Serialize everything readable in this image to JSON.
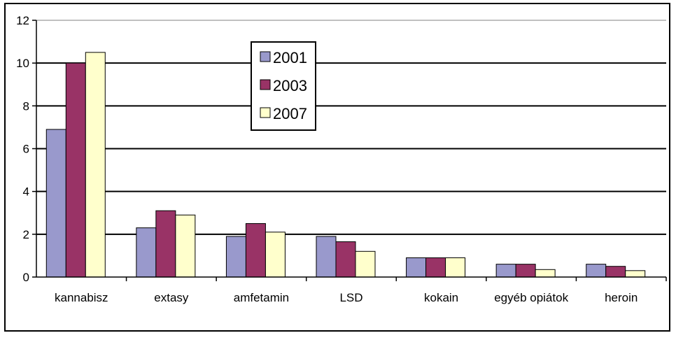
{
  "chart_data": {
    "type": "bar",
    "title": "",
    "xlabel": "",
    "ylabel": "",
    "ylim": [
      0,
      12
    ],
    "yticks": [
      0,
      2,
      4,
      6,
      8,
      10,
      12
    ],
    "grid": true,
    "legend_position": "top-center",
    "categories": [
      "kannabisz",
      "extasy",
      "amfetamin",
      "LSD",
      "kokain",
      "egyéb opiátok",
      "heroin"
    ],
    "series": [
      {
        "name": "2001",
        "color": "#9999CC",
        "values": [
          6.9,
          2.3,
          1.9,
          1.9,
          0.9,
          0.6,
          0.6
        ]
      },
      {
        "name": "2003",
        "color": "#993366",
        "values": [
          10.0,
          3.1,
          2.5,
          1.65,
          0.9,
          0.6,
          0.5
        ]
      },
      {
        "name": "2007",
        "color": "#FFFFCC",
        "values": [
          10.5,
          2.9,
          2.1,
          1.2,
          0.9,
          0.35,
          0.3
        ]
      }
    ]
  }
}
